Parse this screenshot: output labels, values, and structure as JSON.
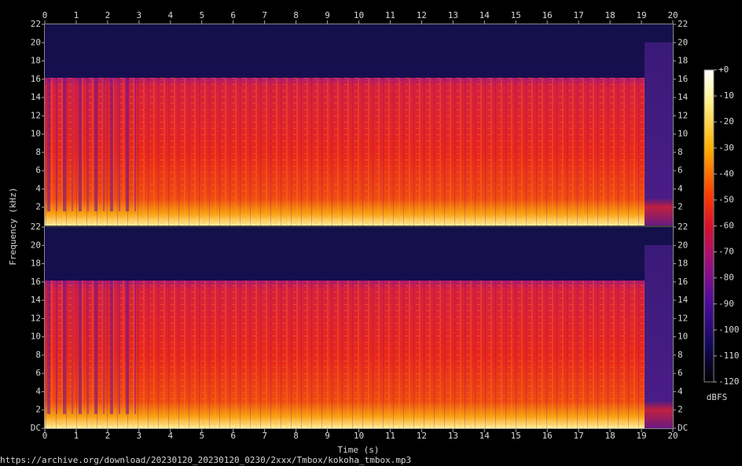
{
  "chart_data": {
    "type": "spectrogram",
    "xlabel": "Time (s)",
    "ylabel": "Frequency (kHz)",
    "xlim": [
      0,
      20
    ],
    "xticks": [
      0,
      1,
      2,
      3,
      4,
      5,
      6,
      7,
      8,
      9,
      10,
      11,
      12,
      13,
      14,
      15,
      16,
      17,
      18,
      19,
      20
    ],
    "panels": [
      {
        "ylim": [
          0,
          22
        ],
        "yticks": [
          2,
          4,
          6,
          8,
          10,
          12,
          14,
          16,
          18,
          20,
          22
        ]
      },
      {
        "ylim": [
          0,
          22
        ],
        "yticks": [
          {
            "value": 0,
            "label": "DC"
          },
          2,
          4,
          6,
          8,
          10,
          12,
          14,
          16,
          18,
          20,
          22
        ]
      }
    ],
    "colorbar": {
      "label": "dBFS",
      "ylim": [
        -120,
        0
      ],
      "yticks": [
        {
          "value": 0,
          "label": "+0"
        },
        -10,
        -20,
        -30,
        -40,
        -50,
        -60,
        -70,
        -80,
        -90,
        -100,
        -110,
        -120
      ]
    },
    "footer": "https://archive.org/download/20230120_20230120_0230/2xxx/Tmbox/kokoha_tmbox.mp3"
  }
}
